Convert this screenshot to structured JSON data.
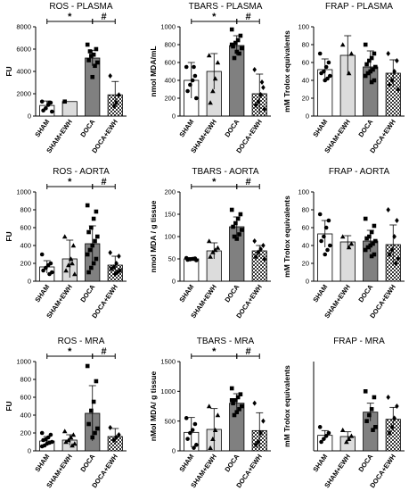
{
  "chart_data": [
    {
      "type": "bar",
      "title": "ROS - PLASMA",
      "ylabel": "FU",
      "ylim": [
        0,
        8000
      ],
      "yticks": [
        "0",
        "2000",
        "4000",
        "6000",
        "8000"
      ],
      "categories": [
        "SHAM",
        "SHAM+EWH",
        "DOCA",
        "DOCA+EWH"
      ],
      "fills": [
        "#ffffff",
        "#dcdcdc",
        "#808080",
        "checker"
      ],
      "values": [
        950,
        1300,
        5200,
        1900
      ],
      "errors": [
        400,
        0,
        700,
        1200
      ],
      "points": [
        [
          1300,
          1200,
          1000,
          700,
          500,
          400,
          1200
        ],
        [
          1300
        ],
        [
          6400,
          6000,
          5500,
          5400,
          5000,
          4800,
          4500,
          3500,
          5800
        ],
        [
          3600,
          1900,
          1200,
          900
        ]
      ],
      "markers": [
        "circle",
        "square",
        "square",
        "diamond"
      ],
      "significance": [
        {
          "label": "*",
          "from": 0,
          "to": 2
        },
        {
          "label": "#",
          "from": 2,
          "to": 3
        }
      ]
    },
    {
      "type": "bar",
      "title": "TBARS - PLASMA",
      "ylabel": "nmol MDA/mL",
      "ylim": [
        0,
        1000
      ],
      "yticks": [
        "0",
        "200",
        "400",
        "600",
        "800",
        "1000"
      ],
      "categories": [
        "SHAM",
        "SHAM+EWH",
        "DOCA",
        "DOCA+EWH"
      ],
      "fills": [
        "#ffffff",
        "#dcdcdc",
        "#808080",
        "checker"
      ],
      "values": [
        400,
        500,
        790,
        250
      ],
      "errors": [
        200,
        200,
        110,
        220
      ],
      "points": [
        [
          550,
          450,
          400,
          350,
          280,
          200,
          550
        ],
        [
          680,
          600,
          420,
          280,
          150
        ],
        [
          970,
          900,
          850,
          820,
          780,
          760,
          700,
          720,
          650,
          800
        ],
        [
          520,
          320,
          240,
          160,
          120,
          80,
          380
        ]
      ],
      "markers": [
        "circle",
        "triangle",
        "square",
        "diamond"
      ],
      "significance": [
        {
          "label": "*",
          "from": 0,
          "to": 2
        },
        {
          "label": "#",
          "from": 2,
          "to": 3
        }
      ]
    },
    {
      "type": "bar",
      "title": "FRAP - PLASMA",
      "ylabel": "mM Trolox equivalents",
      "ylim": [
        0,
        100
      ],
      "yticks": [
        "0",
        "20",
        "40",
        "60",
        "80",
        "100"
      ],
      "categories": [
        "SHAM",
        "SHAM+EWH",
        "DOCA",
        "DOCA+EWH"
      ],
      "fills": [
        "#ffffff",
        "#dcdcdc",
        "#808080",
        "checker"
      ],
      "values": [
        52,
        68,
        55,
        48
      ],
      "errors": [
        12,
        22,
        18,
        15
      ],
      "points": [
        [
          70,
          60,
          55,
          50,
          48,
          45,
          42,
          40
        ],
        [
          80,
          70,
          48
        ],
        [
          80,
          70,
          65,
          62,
          58,
          55,
          52,
          50,
          48,
          45,
          40,
          38
        ],
        [
          70,
          62,
          50,
          40,
          35,
          30
        ]
      ],
      "markers": [
        "circle",
        "triangle",
        "square",
        "diamond"
      ],
      "significance": []
    },
    {
      "type": "bar",
      "title": "ROS - AORTA",
      "ylabel": "FU",
      "ylim": [
        0,
        1000
      ],
      "yticks": [
        "0",
        "200",
        "400",
        "600",
        "800",
        "1000"
      ],
      "categories": [
        "SHAM",
        "SHAM+EWH",
        "DOCA",
        "DOCA+EWH"
      ],
      "fills": [
        "#ffffff",
        "#dcdcdc",
        "#808080",
        "checker"
      ],
      "values": [
        160,
        250,
        420,
        180
      ],
      "errors": [
        70,
        210,
        200,
        100
      ],
      "points": [
        [
          300,
          200,
          180,
          150,
          120,
          100,
          80
        ],
        [
          500,
          400,
          250,
          180,
          120,
          80,
          200
        ],
        [
          850,
          780,
          700,
          600,
          550,
          500,
          450,
          400,
          350,
          300,
          250,
          200,
          150,
          100
        ],
        [
          320,
          280,
          200,
          160,
          140,
          120,
          100,
          80
        ]
      ],
      "markers": [
        "circle",
        "triangle",
        "square",
        "diamond"
      ],
      "significance": [
        {
          "label": "*",
          "from": 0,
          "to": 2
        },
        {
          "label": "#",
          "from": 2,
          "to": 3
        }
      ]
    },
    {
      "type": "bar",
      "title": "TBARS - AORTA",
      "ylabel": "nmol MDA / g tissue",
      "ylim": [
        0,
        200
      ],
      "yticks": [
        "0",
        "50",
        "100",
        "150",
        "200"
      ],
      "categories": [
        "SHAM",
        "SHAM+EWH",
        "DOCA",
        "DOCA+EWH"
      ],
      "fills": [
        "#ffffff",
        "#dcdcdc",
        "#808080",
        "checker"
      ],
      "values": [
        50,
        68,
        122,
        68
      ],
      "errors": [
        3,
        18,
        22,
        12
      ],
      "points": [
        [
          52,
          51,
          50,
          49,
          48,
          47,
          50
        ],
        [
          90,
          75,
          70,
          65,
          55
        ],
        [
          160,
          150,
          140,
          130,
          122,
          115,
          105,
          95,
          100
        ],
        [
          90,
          80,
          72,
          65,
          55,
          50
        ]
      ],
      "markers": [
        "circle",
        "triangle",
        "square",
        "diamond"
      ],
      "significance": [
        {
          "label": "*",
          "from": 0,
          "to": 2
        },
        {
          "label": "#",
          "from": 2,
          "to": 3
        }
      ]
    },
    {
      "type": "bar",
      "title": "FRAP - AORTA",
      "ylabel": "mM Trolox equivalents",
      "ylim": [
        0,
        100
      ],
      "yticks": [
        "0",
        "20",
        "40",
        "60",
        "80",
        "100"
      ],
      "categories": [
        "SHAM",
        "SHAM+EWH",
        "DOCA",
        "DOCA+EWH"
      ],
      "fills": [
        "#ffffff",
        "#dcdcdc",
        "#808080",
        "checker"
      ],
      "values": [
        53,
        44,
        45,
        41
      ],
      "errors": [
        15,
        7,
        12,
        22
      ],
      "points": [
        [
          75,
          68,
          60,
          50,
          45,
          40,
          35,
          30
        ],
        [
          50,
          42,
          38
        ],
        [
          70,
          62,
          55,
          50,
          48,
          45,
          42,
          40,
          38,
          35,
          30,
          28
        ],
        [
          80,
          68,
          50,
          35,
          30,
          25,
          20
        ]
      ],
      "markers": [
        "circle",
        "triangle",
        "square",
        "diamond"
      ],
      "significance": []
    },
    {
      "type": "bar",
      "title": "ROS - MRA",
      "ylabel": "FU",
      "ylim": [
        0,
        1000
      ],
      "yticks": [
        "0",
        "200",
        "400",
        "600",
        "800",
        "1000"
      ],
      "categories": [
        "SHAM",
        "SHAM+EWH",
        "DOCA",
        "DOCA+EWH"
      ],
      "fills": [
        "#ffffff",
        "#dcdcdc",
        "#808080",
        "checker"
      ],
      "values": [
        110,
        120,
        420,
        160
      ],
      "errors": [
        50,
        60,
        310,
        90
      ],
      "points": [
        [
          200,
          180,
          150,
          130,
          120,
          100,
          90,
          80,
          60,
          50
        ],
        [
          220,
          180,
          150,
          120,
          100,
          80,
          60
        ],
        [
          950,
          780,
          550,
          450,
          300,
          250,
          200,
          150
        ],
        [
          260,
          180,
          150,
          120
        ]
      ],
      "markers": [
        "circle",
        "triangle",
        "square",
        "diamond"
      ],
      "significance": [
        {
          "label": "*",
          "from": 0,
          "to": 2
        },
        {
          "label": "#",
          "from": 2,
          "to": 3
        }
      ]
    },
    {
      "type": "bar",
      "title": "TBARS - MRA",
      "ylabel": "nMol MDA/ g tissue",
      "ylim": [
        0,
        1500
      ],
      "yticks": [
        "0",
        "500",
        "1000",
        "1500"
      ],
      "categories": [
        "SHAM",
        "SHAM+EWH",
        "DOCA",
        "DOCA+EWH"
      ],
      "fills": [
        "#ffffff",
        "#dcdcdc",
        "#808080",
        "checker"
      ],
      "values": [
        310,
        360,
        800,
        340
      ],
      "errors": [
        250,
        350,
        160,
        300
      ],
      "points": [
        [
          550,
          450,
          350,
          300,
          200,
          100,
          50
        ],
        [
          750,
          600,
          350,
          200,
          50
        ],
        [
          1050,
          950,
          900,
          850,
          800,
          750,
          700,
          650,
          600,
          850
        ],
        [
          800,
          500,
          300,
          150,
          100
        ]
      ],
      "markers": [
        "circle",
        "triangle",
        "square",
        "diamond"
      ],
      "significance": [
        {
          "label": "*",
          "from": 0,
          "to": 2
        },
        {
          "label": "#",
          "from": 2,
          "to": 3
        }
      ]
    },
    {
      "type": "bar",
      "title": "FRAP - MRA",
      "ylabel": "mM Trolox equivalents",
      "ylim": [
        0,
        150
      ],
      "yticks": [],
      "categories": [
        "SHAM",
        "SHAM+EWH",
        "DOCA",
        "DOCA+EWH"
      ],
      "fills": [
        "#ffffff",
        "#dcdcdc",
        "#808080",
        "checker"
      ],
      "values": [
        26,
        24,
        65,
        53
      ],
      "errors": [
        8,
        8,
        15,
        20
      ],
      "points": [
        [
          40,
          30,
          25,
          20,
          15
        ],
        [
          35,
          25,
          20,
          15
        ],
        [
          100,
          90,
          70,
          60,
          50,
          40,
          35
        ],
        [
          90,
          75,
          55,
          40,
          30
        ]
      ],
      "markers": [
        "circle",
        "triangle",
        "square",
        "diamond"
      ],
      "significance": []
    }
  ]
}
